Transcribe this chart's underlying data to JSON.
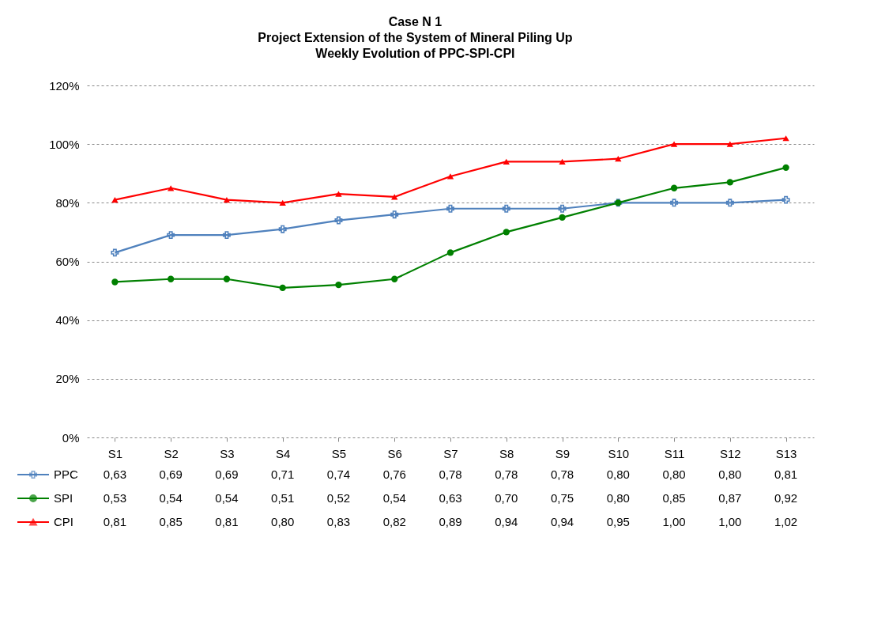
{
  "chart_data": {
    "type": "line",
    "title": "Case N  1\nProject Extension of the System of Mineral Piling Up\nWeekly Evolution of PPC-SPI-CPI",
    "categories": [
      "S1",
      "S2",
      "S3",
      "S4",
      "S5",
      "S6",
      "S7",
      "S8",
      "S9",
      "S10",
      "S11",
      "S12",
      "S13"
    ],
    "series": [
      {
        "name": "PPC",
        "color": "#4f81bd",
        "marker": "cross",
        "values": [
          0.63,
          0.69,
          0.69,
          0.71,
          0.74,
          0.76,
          0.78,
          0.78,
          0.78,
          0.8,
          0.8,
          0.8,
          0.81
        ],
        "value_labels": [
          "0,63",
          "0,69",
          "0,69",
          "0,71",
          "0,74",
          "0,76",
          "0,78",
          "0,78",
          "0,78",
          "0,80",
          "0,80",
          "0,80",
          "0,81"
        ]
      },
      {
        "name": "SPI",
        "color": "#008000",
        "marker": "circle",
        "values": [
          0.53,
          0.54,
          0.54,
          0.51,
          0.52,
          0.54,
          0.63,
          0.7,
          0.75,
          0.8,
          0.85,
          0.87,
          0.92
        ],
        "value_labels": [
          "0,53",
          "0,54",
          "0,54",
          "0,51",
          "0,52",
          "0,54",
          "0,63",
          "0,70",
          "0,75",
          "0,80",
          "0,85",
          "0,87",
          "0,92"
        ]
      },
      {
        "name": "CPI",
        "color": "#ff0000",
        "marker": "triangle",
        "values": [
          0.81,
          0.85,
          0.81,
          0.8,
          0.83,
          0.82,
          0.89,
          0.94,
          0.94,
          0.95,
          1.0,
          1.0,
          1.02
        ],
        "value_labels": [
          "0,81",
          "0,85",
          "0,81",
          "0,80",
          "0,83",
          "0,82",
          "0,89",
          "0,94",
          "0,94",
          "0,95",
          "1,00",
          "1,00",
          "1,02"
        ]
      }
    ],
    "ylim": [
      0,
      1.2
    ],
    "yticks": [
      {
        "value": 0,
        "label": "0%"
      },
      {
        "value": 0.2,
        "label": "20%"
      },
      {
        "value": 0.4,
        "label": "40%"
      },
      {
        "value": 0.6,
        "label": "60%"
      },
      {
        "value": 0.8,
        "label": "80%"
      },
      {
        "value": 1.0,
        "label": "100%"
      },
      {
        "value": 1.2,
        "label": "120%"
      }
    ],
    "grid": "y",
    "legend": "bottom"
  }
}
